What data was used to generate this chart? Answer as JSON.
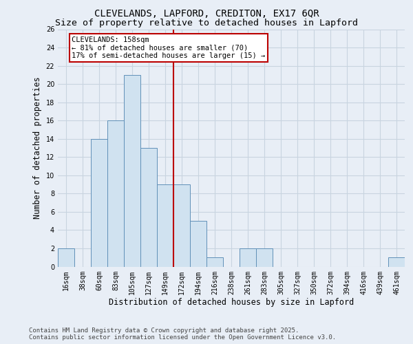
{
  "title1": "CLEVELANDS, LAPFORD, CREDITON, EX17 6QR",
  "title2": "Size of property relative to detached houses in Lapford",
  "xlabel": "Distribution of detached houses by size in Lapford",
  "ylabel": "Number of detached properties",
  "categories": [
    "16sqm",
    "38sqm",
    "60sqm",
    "83sqm",
    "105sqm",
    "127sqm",
    "149sqm",
    "172sqm",
    "194sqm",
    "216sqm",
    "238sqm",
    "261sqm",
    "283sqm",
    "305sqm",
    "327sqm",
    "350sqm",
    "372sqm",
    "394sqm",
    "416sqm",
    "439sqm",
    "461sqm"
  ],
  "values": [
    2,
    0,
    14,
    16,
    21,
    13,
    9,
    9,
    5,
    1,
    0,
    2,
    2,
    0,
    0,
    0,
    0,
    0,
    0,
    0,
    1
  ],
  "bar_color": "#d0e2f0",
  "bar_edge_color": "#6090b8",
  "bar_edge_width": 0.7,
  "vline_x_index": 6.5,
  "vline_color": "#bb0000",
  "annotation_text": "CLEVELANDS: 158sqm\n← 81% of detached houses are smaller (70)\n17% of semi-detached houses are larger (15) →",
  "annotation_box_facecolor": "#ffffff",
  "annotation_box_edgecolor": "#bb0000",
  "ylim": [
    0,
    26
  ],
  "yticks": [
    0,
    2,
    4,
    6,
    8,
    10,
    12,
    14,
    16,
    18,
    20,
    22,
    24,
    26
  ],
  "grid_color": "#c8d4e0",
  "plot_bg_color": "#e8eef6",
  "fig_bg_color": "#e8eef6",
  "footer_text": "Contains HM Land Registry data © Crown copyright and database right 2025.\nContains public sector information licensed under the Open Government Licence v3.0.",
  "title1_fontsize": 10,
  "title2_fontsize": 9.5,
  "axis_label_fontsize": 8.5,
  "tick_fontsize": 7,
  "annot_fontsize": 7.5,
  "footer_fontsize": 6.5
}
